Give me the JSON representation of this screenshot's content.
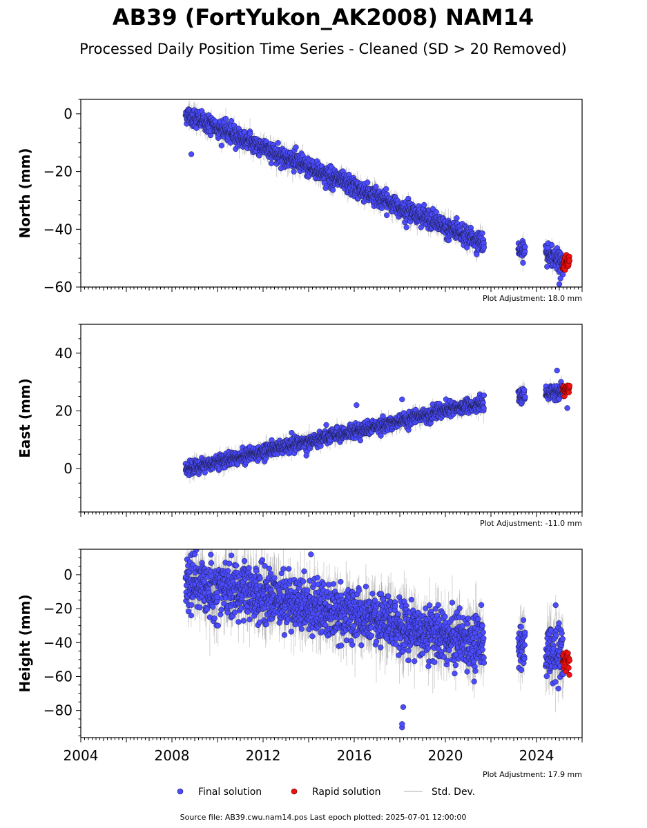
{
  "title": "AB39 (FortYukon_AK2008) NAM14",
  "subtitle": "Processed Daily Position Time Series - Cleaned (SD > 20 Removed)",
  "footer": "Source file: AB39.cwu.nam14.pos  Last epoch plotted: 2025-07-01 12:00:00",
  "legend": {
    "final_label": "Final solution",
    "rapid_label": "Rapid solution",
    "std_label": "Std. Dev.",
    "placement": "bottom-center"
  },
  "colors": {
    "final": "#4b4bff",
    "final_edge": "#1a1a40",
    "rapid": "#ee1111",
    "std": "#808080"
  },
  "chart_data": [
    {
      "type": "scatter",
      "panel": "north",
      "ylabel": "North (mm)",
      "adjustment": "Plot Adjustment: 18.0 mm",
      "xlim": [
        2004,
        2026
      ],
      "ylim": [
        -60,
        5
      ],
      "yticks": [
        0,
        -20,
        -40,
        -60
      ],
      "yticks_labels": [
        "0",
        "−20",
        "−40",
        "−60"
      ],
      "show_xtick_labels": false,
      "segments": [
        [
          2008.6,
          2021.7
        ],
        [
          2023.2,
          2023.5
        ],
        [
          2024.4,
          2025.2
        ]
      ],
      "trend": [
        [
          2008.6,
          0
        ],
        [
          2021.7,
          -45
        ],
        [
          2024.4,
          -49
        ],
        [
          2025.3,
          -52
        ]
      ],
      "noise_sd": 1.6,
      "std_sd": 2.5,
      "outliers": [
        [
          2008.85,
          -14
        ],
        [
          2025.0,
          -59
        ],
        [
          2025.05,
          -57
        ]
      ],
      "rapid": {
        "range": [
          2025.15,
          2025.45
        ],
        "center": -52,
        "spread": 1.5
      }
    },
    {
      "type": "scatter",
      "panel": "east",
      "ylabel": "East (mm)",
      "adjustment": "Plot Adjustment: -11.0 mm",
      "xlim": [
        2004,
        2026
      ],
      "ylim": [
        -15,
        50
      ],
      "yticks": [
        40,
        20,
        0
      ],
      "yticks_labels": [
        "40",
        "20",
        "0"
      ],
      "show_xtick_labels": false,
      "segments": [
        [
          2008.6,
          2021.7
        ],
        [
          2023.2,
          2023.5
        ],
        [
          2024.4,
          2025.2
        ]
      ],
      "trend": [
        [
          2008.6,
          0
        ],
        [
          2021.7,
          23
        ],
        [
          2024.4,
          26
        ],
        [
          2025.3,
          27
        ]
      ],
      "noise_sd": 1.2,
      "std_sd": 2.0,
      "outliers": [
        [
          2013.9,
          4.5
        ],
        [
          2016.1,
          22
        ],
        [
          2018.1,
          24
        ],
        [
          2024.9,
          34
        ],
        [
          2025.35,
          21
        ]
      ],
      "rapid": {
        "range": [
          2025.15,
          2025.45
        ],
        "center": 27.5,
        "spread": 1.0
      }
    },
    {
      "type": "scatter",
      "panel": "height",
      "ylabel": "Height (mm)",
      "adjustment": "Plot Adjustment: 17.9 mm",
      "xlim": [
        2004,
        2026
      ],
      "ylim": [
        -96,
        15
      ],
      "yticks": [
        0,
        -20,
        -40,
        -60,
        -80
      ],
      "yticks_labels": [
        "0",
        "−20",
        "−40",
        "−60",
        "−80"
      ],
      "show_xtick_labels": true,
      "xticks": [
        2004,
        2008,
        2012,
        2016,
        2020,
        2024
      ],
      "xticks_labels": [
        "2004",
        "2008",
        "2012",
        "2016",
        "2020",
        "2024"
      ],
      "segments": [
        [
          2008.6,
          2021.7
        ],
        [
          2023.2,
          2023.5
        ],
        [
          2024.4,
          2025.2
        ]
      ],
      "trend": [
        [
          2008.6,
          -5
        ],
        [
          2012,
          -12
        ],
        [
          2016,
          -25
        ],
        [
          2021.7,
          -40
        ],
        [
          2024.4,
          -45
        ],
        [
          2025.3,
          -48
        ]
      ],
      "noise_sd": 8,
      "std_sd": 12,
      "outliers": [
        [
          2018.1,
          -90
        ],
        [
          2018.1,
          -88
        ],
        [
          2018.15,
          -78
        ],
        [
          2014.1,
          12
        ],
        [
          2009.0,
          12
        ]
      ],
      "rapid": {
        "range": [
          2025.15,
          2025.45
        ],
        "center": -51,
        "spread": 4
      }
    }
  ]
}
